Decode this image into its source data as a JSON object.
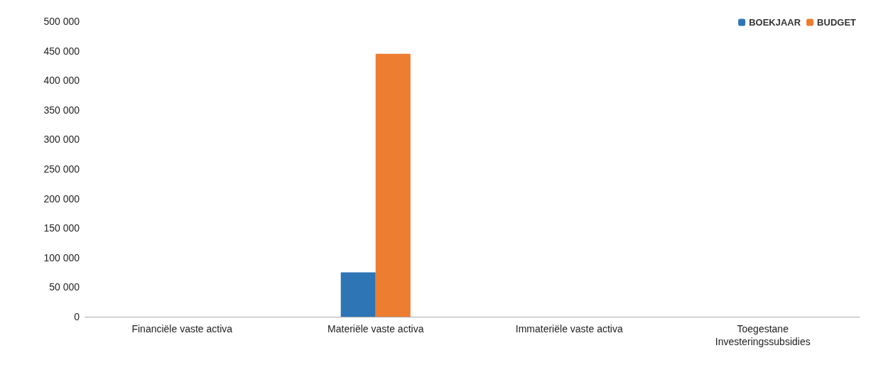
{
  "chart_data": {
    "type": "bar",
    "categories": [
      "Financiële vaste activa",
      "Materiële vaste activa",
      "Immateriële vaste activa",
      "Toegestane\nInvesteringssubsidies"
    ],
    "series": [
      {
        "name": "BOEKJAAR",
        "color": "#2e75b6",
        "values": [
          0,
          75000,
          0,
          0
        ]
      },
      {
        "name": "BUDGET",
        "color": "#ed7d31",
        "values": [
          0,
          445000,
          0,
          0
        ]
      }
    ],
    "ylim": [
      0,
      500000
    ],
    "yticks": [
      0,
      {
        "value": 50000,
        "label": "50 000"
      },
      {
        "value": 100000,
        "label": "100 000"
      },
      {
        "value": 150000,
        "label": "150 000"
      },
      {
        "value": 200000,
        "label": "200 000"
      },
      {
        "value": 250000,
        "label": "250 000"
      },
      {
        "value": 300000,
        "label": "300 000"
      },
      {
        "value": 350000,
        "label": "350 000"
      },
      {
        "value": 400000,
        "label": "400 000"
      },
      {
        "value": 450000,
        "label": "450 000"
      },
      {
        "value": 500000,
        "label": "500 000"
      }
    ],
    "legend": "top right"
  }
}
